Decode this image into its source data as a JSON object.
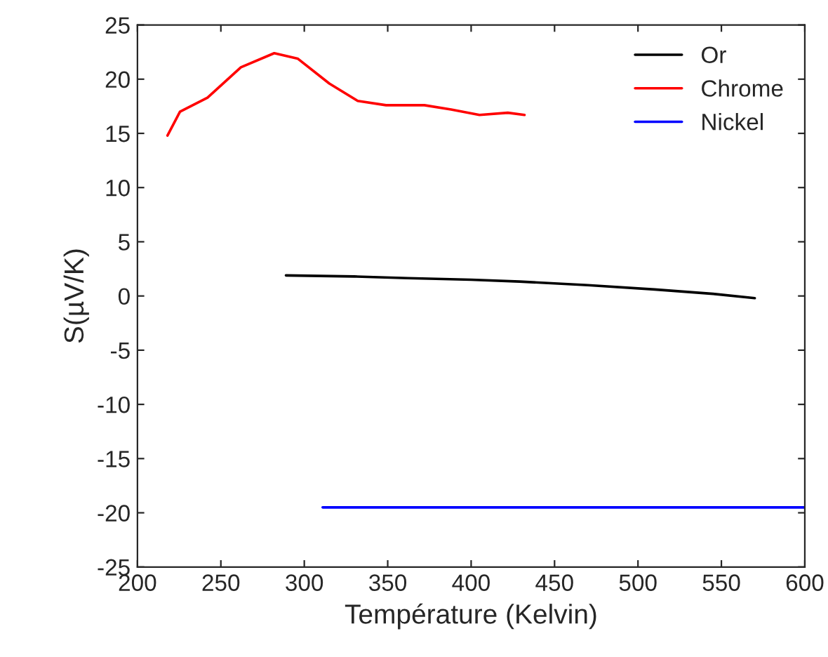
{
  "chart_data": {
    "type": "line",
    "xlabel": "Température (Kelvin)",
    "ylabel": "S(µV/K)",
    "xlim": [
      200,
      600
    ],
    "xticks": [
      200,
      250,
      300,
      350,
      400,
      450,
      500,
      550,
      600
    ],
    "ylim": [
      -25,
      25
    ],
    "yticks": [
      -25,
      -20,
      -15,
      -10,
      -5,
      0,
      5,
      10,
      15,
      20,
      25
    ],
    "grid": false,
    "legend": "top right",
    "marker": "none",
    "line_style": "solid",
    "series": [
      {
        "name": "Or",
        "color": "#000000",
        "x": [
          289,
          330,
          362,
          400,
          429,
          470,
          510,
          545,
          570
        ],
        "values": [
          1.9,
          1.8,
          1.65,
          1.5,
          1.33,
          1.0,
          0.6,
          0.2,
          -0.2
        ]
      },
      {
        "name": "Chrome",
        "color": "#ff0000",
        "x": [
          218,
          225.5,
          242,
          262,
          282,
          296,
          315,
          332,
          349,
          372,
          388,
          405,
          422,
          432
        ],
        "values": [
          14.8,
          17.0,
          18.3,
          21.1,
          22.4,
          21.9,
          19.6,
          18.0,
          17.6,
          17.6,
          17.2,
          16.7,
          16.9,
          16.7
        ]
      },
      {
        "name": "Nickel",
        "color": "#0000ff",
        "x": [
          311,
          600
        ],
        "values": [
          -19.5,
          -19.5
        ]
      }
    ]
  }
}
